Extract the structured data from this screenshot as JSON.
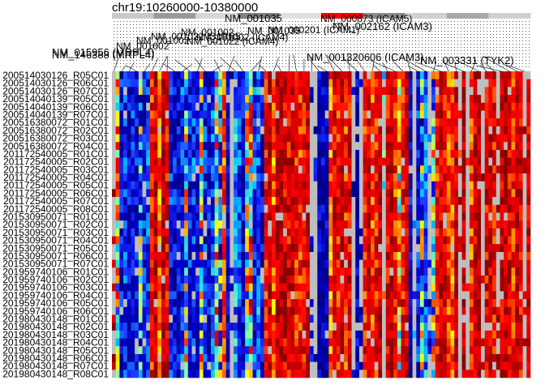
{
  "chart_data": {
    "type": "heatmap",
    "title": "chr19:10260000-10380000",
    "ideogram": {
      "band_colors": [
        "#c8c8c8",
        "#9a9a9a",
        "#d6d6d6",
        "#808080",
        "#e0e0e0",
        "#ff0000",
        "#8a8a8a",
        "#d0d0d0",
        "#a8a8a8",
        "#cfcfcf"
      ],
      "highlight_color": "#ff0000"
    },
    "gene_labels": [
      "NM_146388 (MRPL4)",
      "NM_015956 (MRPL4)",
      "NM_001002",
      "NM_001002",
      "NM_001022 (S1PR5)",
      "NM_001002",
      "NM_001022 (ICAM4)",
      "NM_001002 (ICAM4)",
      "NM_001035",
      "NM_001035",
      "NM_000201 (ICAM1)",
      "NM_000873 (ICAM5)",
      "NM_002162 (ICAM3)",
      "NM_001320606 (ICAM3)",
      "NM_003331 (TYK2)"
    ],
    "samples": [
      "200514030126_R05C01",
      "200514030126_R06C01",
      "200514030126_R07C01",
      "200514040139_R05C01",
      "200514040139_R06C01",
      "200514040139_R07C01",
      "200516380072_R01C01",
      "200516380072_R02C01",
      "200516380072_R03C01",
      "200516380072_R04C01",
      "201172540005_R01C01",
      "201172540005_R02C01",
      "201172540005_R03C01",
      "201172540005_R04C01",
      "201172540005_R05C01",
      "201172540005_R06C01",
      "201172540005_R07C01",
      "201172540005_R08C01",
      "201530950071_R01C01",
      "201530950071_R02C01",
      "201530950071_R03C01",
      "201530950071_R04C01",
      "201530950071_R05C01",
      "201530950071_R06C01",
      "201530950071_R07C01",
      "201959740106_R01C01",
      "201959740106_R02C01",
      "201959740106_R03C01",
      "201959740106_R04C01",
      "201959740106_R05C01",
      "201959740106_R06C01",
      "201980430148_R01C01",
      "201980430148_R02C01",
      "201980430148_R03C01",
      "201980430148_R04C01",
      "201980430148_R05C01",
      "201980430148_R06C01",
      "201980430148_R07C01",
      "201980430148_R08C01"
    ],
    "n_probes": 110,
    "value_range": [
      0,
      1
    ],
    "missing_color": "#bebebe",
    "colorscale": [
      "#00008b",
      "#0000cd",
      "#1e3cff",
      "#00c8ff",
      "#7fffb0",
      "#ffff00",
      "#ff8c00",
      "#ff0000",
      "#d40000",
      "#8b0000"
    ],
    "column_profile": [
      0.95,
      0.55,
      0.12,
      0.18,
      0.1,
      0.16,
      0.12,
      0.35,
      0.14,
      0.2,
      0.8,
      0.88,
      0.7,
      0.92,
      0.85,
      0.15,
      0.12,
      0.1,
      0.18,
      0.4,
      0.14,
      0.2,
      0.12,
      0.45,
      0.16,
      0.1,
      0.22,
      0.55,
      0.35,
      0.75,
      0.08,
      0.12,
      0.3,
      0.2,
      0.1,
      0.48,
      0.6,
      0.18,
      0.25,
      0.1,
      0.82,
      0.9,
      0.7,
      0.92,
      0.95,
      0.88,
      0.85,
      0.92,
      0.8,
      0.78,
      0.82,
      0.9,
      0.06,
      0.06,
      0.05,
      0.06,
      0.06,
      0.7,
      0.85,
      0.8,
      0.9,
      0.78,
      0.85,
      0.06,
      0.05,
      0.06,
      0.8,
      0.88,
      0.75,
      0.82,
      0.9,
      0.55,
      0.85,
      0.92,
      0.78,
      0.6,
      0.82,
      0.88,
      0.1,
      0.2,
      0.15,
      0.35,
      0.25,
      0.12,
      0.4,
      0.8,
      0.88,
      0.85,
      0.75,
      0.7,
      0.9,
      0.85,
      0.92,
      0.8,
      0.75,
      0.88,
      0.96,
      0.95,
      0.85,
      0.9,
      0.82,
      0.95,
      0.88,
      0.92,
      0.86,
      0.78,
      0.92,
      0.84,
      0.9,
      0.88
    ],
    "missing_columns": [
      0,
      31,
      52,
      53,
      63,
      65,
      71,
      79,
      83,
      91,
      93,
      97,
      101,
      108
    ]
  }
}
